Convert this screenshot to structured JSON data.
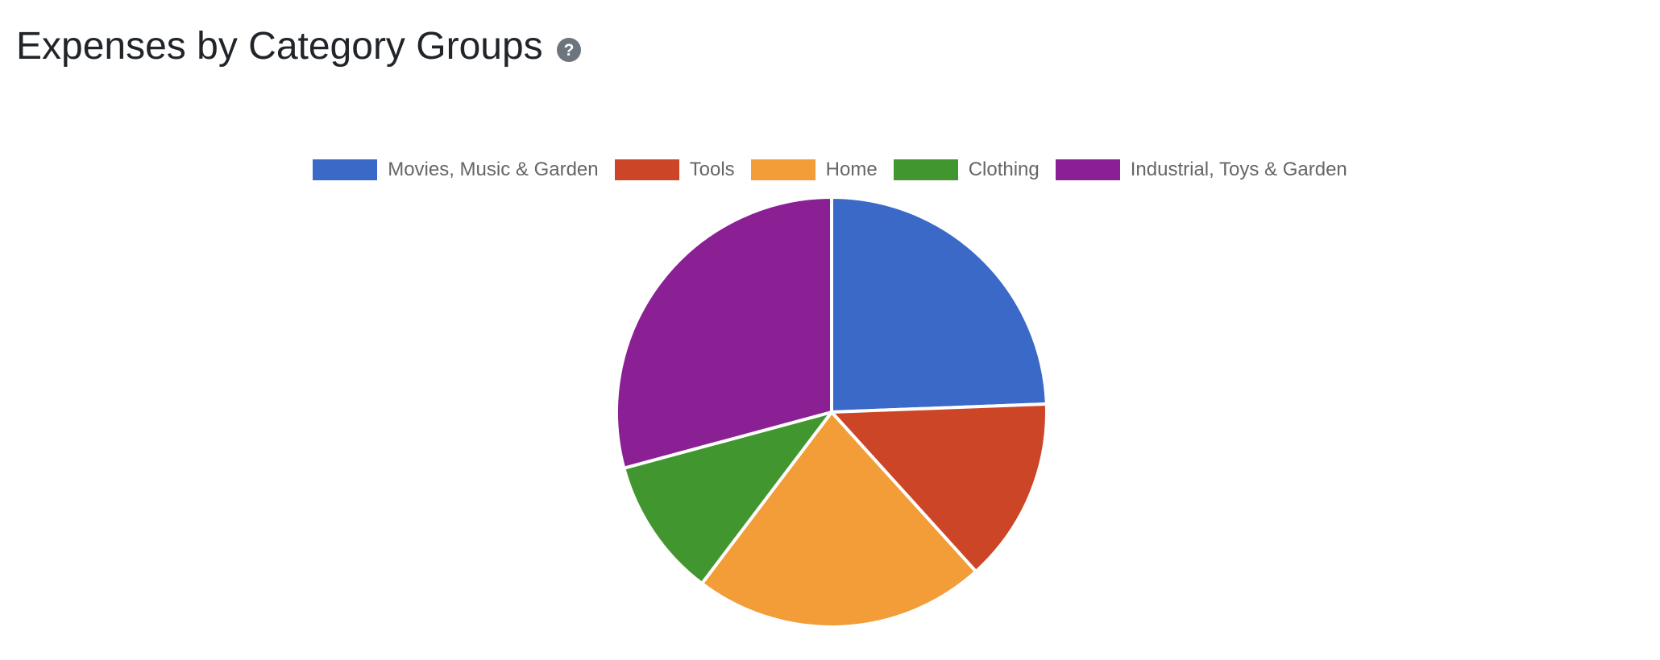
{
  "header": {
    "title": "Expenses by Category Groups"
  },
  "icons": {
    "help": "question-circle-icon"
  },
  "colors": {
    "title": "#212529",
    "legend_text": "#666666",
    "help_icon": "#6c757d",
    "slice_border": "#ffffff"
  },
  "chart_data": {
    "type": "pie",
    "title": "Expenses by Category Groups",
    "legend_position": "top",
    "start_angle_deg": 0,
    "direction": "clockwise",
    "categories": [
      "Movies, Music & Garden",
      "Tools",
      "Home",
      "Clothing",
      "Industrial, Toys & Garden"
    ],
    "values": [
      24.4,
      13.9,
      22.0,
      10.5,
      29.2
    ],
    "colors": [
      "#3b69c8",
      "#cc4527",
      "#f29d38",
      "#42962f",
      "#8a2093"
    ]
  }
}
